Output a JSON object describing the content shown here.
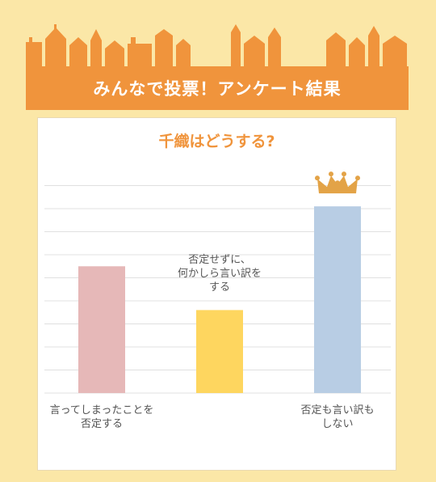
{
  "banner": {
    "title": "みんなで投票！アンケート結果"
  },
  "colors": {
    "background": "#fbe7a7",
    "banner": "#f0943c",
    "skyline": "#f0943c",
    "title": "#f0943c",
    "crown": "#e3a347",
    "gridline": "#e0e0e0"
  },
  "chart_data": {
    "type": "bar",
    "title": "千織はどうする?",
    "categories": [
      "言ってしまったことを\n否定する",
      "否定せずに、\n何かしら言い訳を\nする",
      "否定も言い訳も\nしない"
    ],
    "values": [
      5.5,
      3.6,
      8.1
    ],
    "colors": [
      "#e6b8b8",
      "#fed65f",
      "#b8cde4"
    ],
    "ylim": [
      0,
      9
    ],
    "grid": true,
    "winner_index": 2,
    "winner_icon": "crown-icon"
  }
}
